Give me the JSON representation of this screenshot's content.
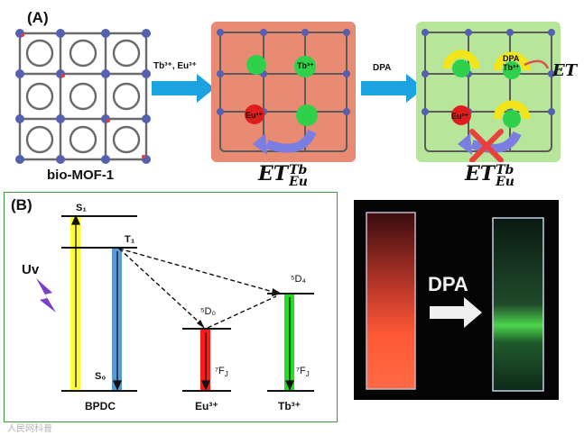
{
  "panelA": {
    "label": "(A)",
    "mof_label": "bio-MOF-1",
    "step1_label": "Tb³⁺, Eu³⁺",
    "step2_label": "DPA",
    "tb_ion": "Tb³⁺",
    "eu_ion": "Eu³⁺",
    "dpa": "DPA",
    "et": "ET",
    "et_sub": "Eu",
    "et_sup": "Tb"
  },
  "panelB": {
    "label": "(B)",
    "uv": "Uv",
    "s1": "S₁",
    "t1": "T₁",
    "s0": "S₀",
    "d0": "⁵D₀",
    "d4": "⁵D₄",
    "fj_eu": "⁷F",
    "fj_tb": "⁷F",
    "fj_sub": "J",
    "bpdc": "BPDC",
    "eu": "Eu³⁺",
    "tb": "Tb³⁺"
  },
  "photo": {
    "arrow_label": "DPA"
  },
  "watermark": "人民网科普",
  "colors": {
    "blue_arrow": "#1aa3e0",
    "red_panel": "#e98a73",
    "green_panel": "#b7e59a",
    "panelB_border": "#3a9a3a",
    "yellow_bar": "#ffff33",
    "blue_bar": "#5b9bd5",
    "red_bar": "#ff1a1a",
    "green_bar": "#22dd22"
  }
}
